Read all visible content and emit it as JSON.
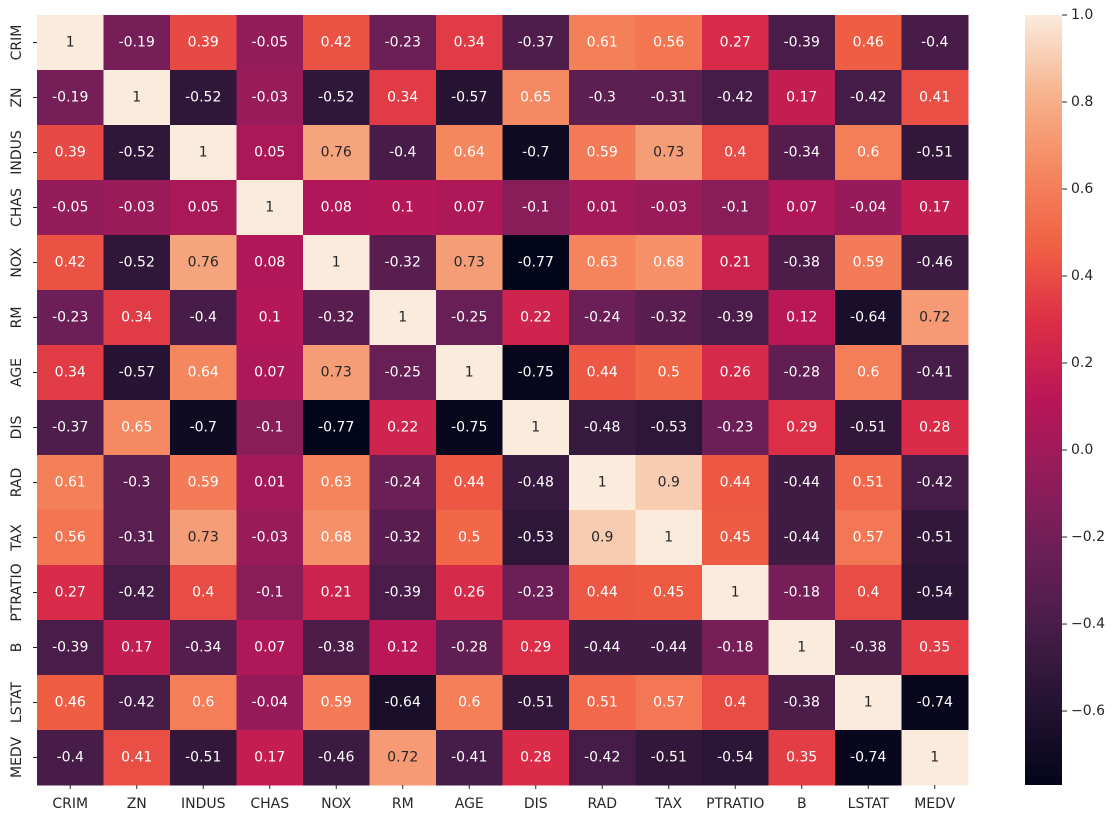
{
  "chart_data": {
    "type": "heatmap",
    "colormap": "rocket",
    "x": [
      "CRIM",
      "ZN",
      "INDUS",
      "CHAS",
      "NOX",
      "RM",
      "AGE",
      "DIS",
      "RAD",
      "TAX",
      "PTRATIO",
      "B",
      "LSTAT",
      "MEDV"
    ],
    "y": [
      "CRIM",
      "ZN",
      "INDUS",
      "CHAS",
      "NOX",
      "RM",
      "AGE",
      "DIS",
      "RAD",
      "TAX",
      "PTRATIO",
      "B",
      "LSTAT",
      "MEDV"
    ],
    "values": [
      [
        1,
        -0.19,
        0.39,
        -0.05,
        0.42,
        -0.23,
        0.34,
        -0.37,
        0.61,
        0.56,
        0.27,
        -0.39,
        0.46,
        -0.4
      ],
      [
        -0.19,
        1,
        -0.52,
        -0.03,
        -0.52,
        0.34,
        -0.57,
        0.65,
        -0.3,
        -0.31,
        -0.42,
        0.17,
        -0.42,
        0.41
      ],
      [
        0.39,
        -0.52,
        1,
        0.05,
        0.76,
        -0.4,
        0.64,
        -0.7,
        0.59,
        0.73,
        0.4,
        -0.34,
        0.6,
        -0.51
      ],
      [
        -0.05,
        -0.03,
        0.05,
        1,
        0.08,
        0.1,
        0.07,
        -0.1,
        0.01,
        -0.03,
        -0.1,
        0.07,
        -0.04,
        0.17
      ],
      [
        0.42,
        -0.52,
        0.76,
        0.08,
        1,
        -0.32,
        0.73,
        -0.77,
        0.63,
        0.68,
        0.21,
        -0.38,
        0.59,
        -0.46
      ],
      [
        -0.23,
        0.34,
        -0.4,
        0.1,
        -0.32,
        1,
        -0.25,
        0.22,
        -0.24,
        -0.32,
        -0.39,
        0.12,
        -0.64,
        0.72
      ],
      [
        0.34,
        -0.57,
        0.64,
        0.07,
        0.73,
        -0.25,
        1,
        -0.75,
        0.44,
        0.5,
        0.26,
        -0.28,
        0.6,
        -0.41
      ],
      [
        -0.37,
        0.65,
        -0.7,
        -0.1,
        -0.77,
        0.22,
        -0.75,
        1,
        -0.48,
        -0.53,
        -0.23,
        0.29,
        -0.51,
        0.28
      ],
      [
        0.61,
        -0.3,
        0.59,
        0.01,
        0.63,
        -0.24,
        0.44,
        -0.48,
        1,
        0.9,
        0.44,
        -0.44,
        0.51,
        -0.42
      ],
      [
        0.56,
        -0.31,
        0.73,
        -0.03,
        0.68,
        -0.32,
        0.5,
        -0.53,
        0.9,
        1,
        0.45,
        -0.44,
        0.57,
        -0.51
      ],
      [
        0.27,
        -0.42,
        0.4,
        -0.1,
        0.21,
        -0.39,
        0.26,
        -0.23,
        0.44,
        0.45,
        1,
        -0.18,
        0.4,
        -0.54
      ],
      [
        -0.39,
        0.17,
        -0.34,
        0.07,
        -0.38,
        0.12,
        -0.28,
        0.29,
        -0.44,
        -0.44,
        -0.18,
        1,
        -0.38,
        0.35
      ],
      [
        0.46,
        -0.42,
        0.6,
        -0.04,
        0.59,
        -0.64,
        0.6,
        -0.51,
        0.51,
        0.57,
        0.4,
        -0.38,
        1,
        -0.74
      ],
      [
        -0.4,
        0.41,
        -0.51,
        0.17,
        -0.46,
        0.72,
        -0.41,
        0.28,
        -0.42,
        -0.51,
        -0.54,
        0.35,
        -0.74,
        1
      ]
    ],
    "zlim": [
      -0.77,
      1
    ],
    "zticks": [
      {
        "value": 1,
        "label": "1.0"
      },
      0.8,
      0.6,
      0.4,
      0.2,
      {
        "value": 0,
        "label": "0.0"
      },
      {
        "value": -0.2,
        "label": "−0.2"
      },
      {
        "value": -0.4,
        "label": "−0.4"
      },
      {
        "value": -0.6,
        "label": "−0.6"
      }
    ]
  }
}
